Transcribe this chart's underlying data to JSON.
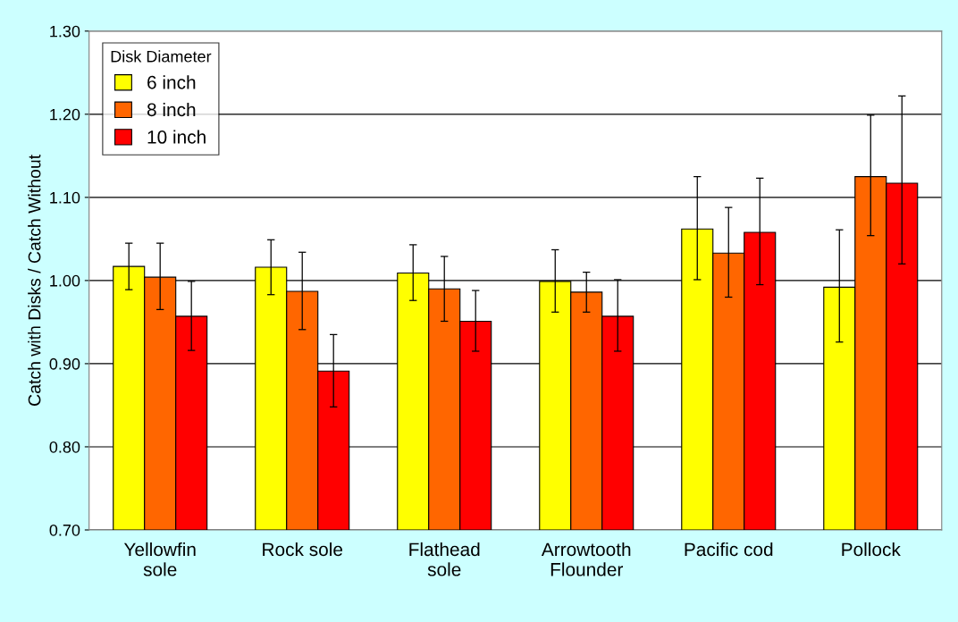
{
  "chart_data": {
    "type": "bar",
    "ylabel": "Catch with Disks / Catch Without",
    "legend_title": "Disk Diameter",
    "categories": [
      "Yellowfin\nsole",
      "Rock sole",
      "Flathead\nsole",
      "Arrowtooth\nFlounder",
      "Pacific cod",
      "Pollock"
    ],
    "series": [
      {
        "name": "6 inch",
        "color": "#ffff00",
        "values": [
          1.017,
          1.016,
          1.009,
          0.999,
          1.062,
          0.992
        ],
        "errors": [
          [
            0.989,
            1.045
          ],
          [
            0.983,
            1.049
          ],
          [
            0.976,
            1.043
          ],
          [
            0.962,
            1.037
          ],
          [
            1.001,
            1.125
          ],
          [
            0.926,
            1.061
          ]
        ]
      },
      {
        "name": "8 inch",
        "color": "#ff6600",
        "values": [
          1.004,
          0.987,
          0.99,
          0.986,
          1.033,
          1.125
        ],
        "errors": [
          [
            0.965,
            1.045
          ],
          [
            0.941,
            1.034
          ],
          [
            0.951,
            1.029
          ],
          [
            0.962,
            1.01
          ],
          [
            0.98,
            1.088
          ],
          [
            1.054,
            1.199
          ]
        ]
      },
      {
        "name": "10 inch",
        "color": "#ff0000",
        "values": [
          0.957,
          0.891,
          0.951,
          0.957,
          1.058,
          1.117
        ],
        "errors": [
          [
            0.916,
            0.999
          ],
          [
            0.848,
            0.935
          ],
          [
            0.915,
            0.988
          ],
          [
            0.915,
            1.001
          ],
          [
            0.995,
            1.123
          ],
          [
            1.02,
            1.222
          ]
        ]
      }
    ],
    "ylim": [
      0.7,
      1.3
    ],
    "yticks": [
      {
        "value": 0.7,
        "label": "0.70"
      },
      {
        "value": 0.8,
        "label": "0.80"
      },
      {
        "value": 0.9,
        "label": "0.90"
      },
      {
        "value": 1.0,
        "label": "1.00"
      },
      {
        "value": 1.1,
        "label": "1.10"
      },
      {
        "value": 1.2,
        "label": "1.20"
      },
      {
        "value": 1.3,
        "label": "1.30"
      }
    ],
    "grid": "y",
    "legend": "top left"
  }
}
